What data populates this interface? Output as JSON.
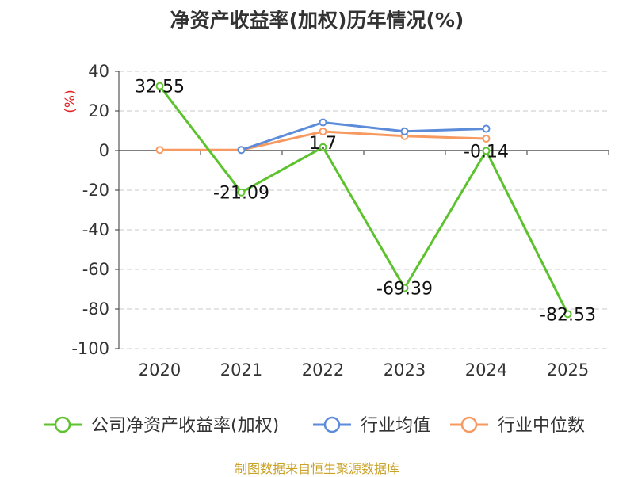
{
  "chart_data": {
    "type": "line",
    "title": "净资产收益率(加权)历年情况(%)",
    "ylabel": "(%)",
    "xlabel": "",
    "categories": [
      "2020",
      "2021",
      "2022",
      "2023",
      "2024",
      "2025"
    ],
    "ylim": [
      -100,
      40
    ],
    "yticks": [
      "40",
      "20",
      "0",
      "-20",
      "-40",
      "-60",
      "-80",
      "-100"
    ],
    "grid": true,
    "legend_position": "bottom",
    "series": [
      {
        "name": "公司净资产收益率(加权)",
        "color": "#5cc22d",
        "values": [
          32.55,
          -21.09,
          1.7,
          -69.39,
          -0.14,
          -82.53
        ],
        "labels": [
          "32.55",
          "-21.09",
          "1.7",
          "-69.39",
          "-0.14",
          "-82.53"
        ]
      },
      {
        "name": "行业均值",
        "color": "#5b8bd9",
        "values": [
          null,
          0.3,
          14.2,
          9.7,
          11.0,
          null
        ]
      },
      {
        "name": "行业中位数",
        "color": "#f79a61",
        "values": [
          0.3,
          0.3,
          9.6,
          7.3,
          6.0,
          null
        ]
      }
    ]
  },
  "source": "制图数据来自恒生聚源数据库"
}
